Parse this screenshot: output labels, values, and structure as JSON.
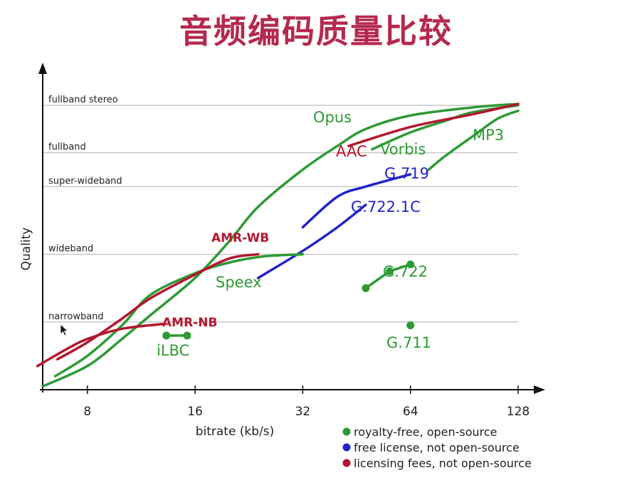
{
  "title": "音频编码质量比较",
  "colors": {
    "royalty_free": "#2e9a34",
    "free_license": "#2323c8",
    "licensing_fees": "#b3162e",
    "grid": "#c8c8c8",
    "title": "#b5294f"
  },
  "chart_data": {
    "type": "line",
    "xlabel": "bitrate (kb/s)",
    "ylabel": "Quality",
    "x_scale": "log2",
    "xlim": [
      6,
      128
    ],
    "x_ticks": [
      8,
      16,
      32,
      64,
      128
    ],
    "y_levels": [
      {
        "label": "narrowband",
        "value": 1
      },
      {
        "label": "wideband",
        "value": 2
      },
      {
        "label": "super-wideband",
        "value": 3
      },
      {
        "label": "fullband",
        "value": 3.5
      },
      {
        "label": "fullband stereo",
        "value": 4.2
      }
    ],
    "ylim": [
      0,
      4.6
    ],
    "grid": true,
    "legend_position": "bottom-right",
    "legend": [
      {
        "label": "royalty-free, open-source",
        "color_key": "royalty_free"
      },
      {
        "label": "free license, not open-source",
        "color_key": "free_license"
      },
      {
        "label": "licensing fees, not open-source",
        "color_key": "licensing_fees"
      }
    ],
    "series": [
      {
        "name": "Opus",
        "color_key": "royalty_free",
        "kind": "curve",
        "points": [
          [
            6,
            0.05
          ],
          [
            8,
            0.35
          ],
          [
            10,
            0.75
          ],
          [
            12,
            1.1
          ],
          [
            16,
            1.65
          ],
          [
            20,
            2.2
          ],
          [
            24,
            2.7
          ],
          [
            32,
            3.25
          ],
          [
            40,
            3.6
          ],
          [
            48,
            3.85
          ],
          [
            64,
            4.05
          ],
          [
            96,
            4.17
          ],
          [
            128,
            4.22
          ]
        ]
      },
      {
        "name": "MP3",
        "color_key": "royalty_free",
        "kind": "curve",
        "points": [
          [
            72,
            3.25
          ],
          [
            80,
            3.45
          ],
          [
            96,
            3.75
          ],
          [
            112,
            4.0
          ],
          [
            128,
            4.12
          ]
        ]
      },
      {
        "name": "Vorbis",
        "color_key": "royalty_free",
        "kind": "curve",
        "points": [
          [
            50,
            3.55
          ],
          [
            64,
            3.8
          ],
          [
            80,
            3.97
          ],
          [
            96,
            4.1
          ],
          [
            128,
            4.2
          ]
        ]
      },
      {
        "name": "AAC",
        "color_key": "licensing_fees",
        "kind": "curve",
        "points": [
          [
            43,
            3.6
          ],
          [
            64,
            3.88
          ],
          [
            96,
            4.07
          ],
          [
            128,
            4.22
          ]
        ]
      },
      {
        "name": "G.719",
        "color_key": "free_license",
        "kind": "curve",
        "points": [
          [
            32,
            2.4
          ],
          [
            40,
            2.85
          ],
          [
            48,
            3.0
          ],
          [
            64,
            3.18
          ]
        ]
      },
      {
        "name": "G.722.1C",
        "color_key": "free_license",
        "kind": "curve",
        "points": [
          [
            24,
            1.65
          ],
          [
            32,
            2.05
          ],
          [
            40,
            2.4
          ],
          [
            48,
            2.73
          ]
        ]
      },
      {
        "name": "Speex",
        "color_key": "royalty_free",
        "kind": "curve",
        "points": [
          [
            6.5,
            0.2
          ],
          [
            8,
            0.5
          ],
          [
            10,
            0.95
          ],
          [
            12,
            1.4
          ],
          [
            16,
            1.72
          ],
          [
            20,
            1.88
          ],
          [
            25,
            1.97
          ],
          [
            32,
            2.0
          ]
        ]
      },
      {
        "name": "AMR-WB",
        "color_key": "licensing_fees",
        "kind": "curve",
        "points": [
          [
            6.6,
            0.45
          ],
          [
            8,
            0.7
          ],
          [
            10,
            1.05
          ],
          [
            12,
            1.35
          ],
          [
            16,
            1.7
          ],
          [
            20,
            1.94
          ],
          [
            24,
            2.0
          ]
        ]
      },
      {
        "name": "AMR-NB",
        "color_key": "licensing_fees",
        "kind": "curve",
        "points": [
          [
            5.8,
            0.35
          ],
          [
            7,
            0.6
          ],
          [
            8,
            0.75
          ],
          [
            10,
            0.9
          ],
          [
            13,
            0.97
          ]
        ]
      },
      {
        "name": "iLBC",
        "color_key": "royalty_free",
        "kind": "points",
        "points": [
          [
            13.3,
            0.8
          ],
          [
            15.2,
            0.8
          ]
        ]
      },
      {
        "name": "G.722",
        "color_key": "royalty_free",
        "kind": "points",
        "points": [
          [
            48,
            1.5
          ],
          [
            56,
            1.75
          ],
          [
            64,
            1.85
          ]
        ]
      },
      {
        "name": "G.711",
        "color_key": "royalty_free",
        "kind": "points",
        "points": [
          [
            64,
            0.95
          ]
        ]
      }
    ]
  }
}
